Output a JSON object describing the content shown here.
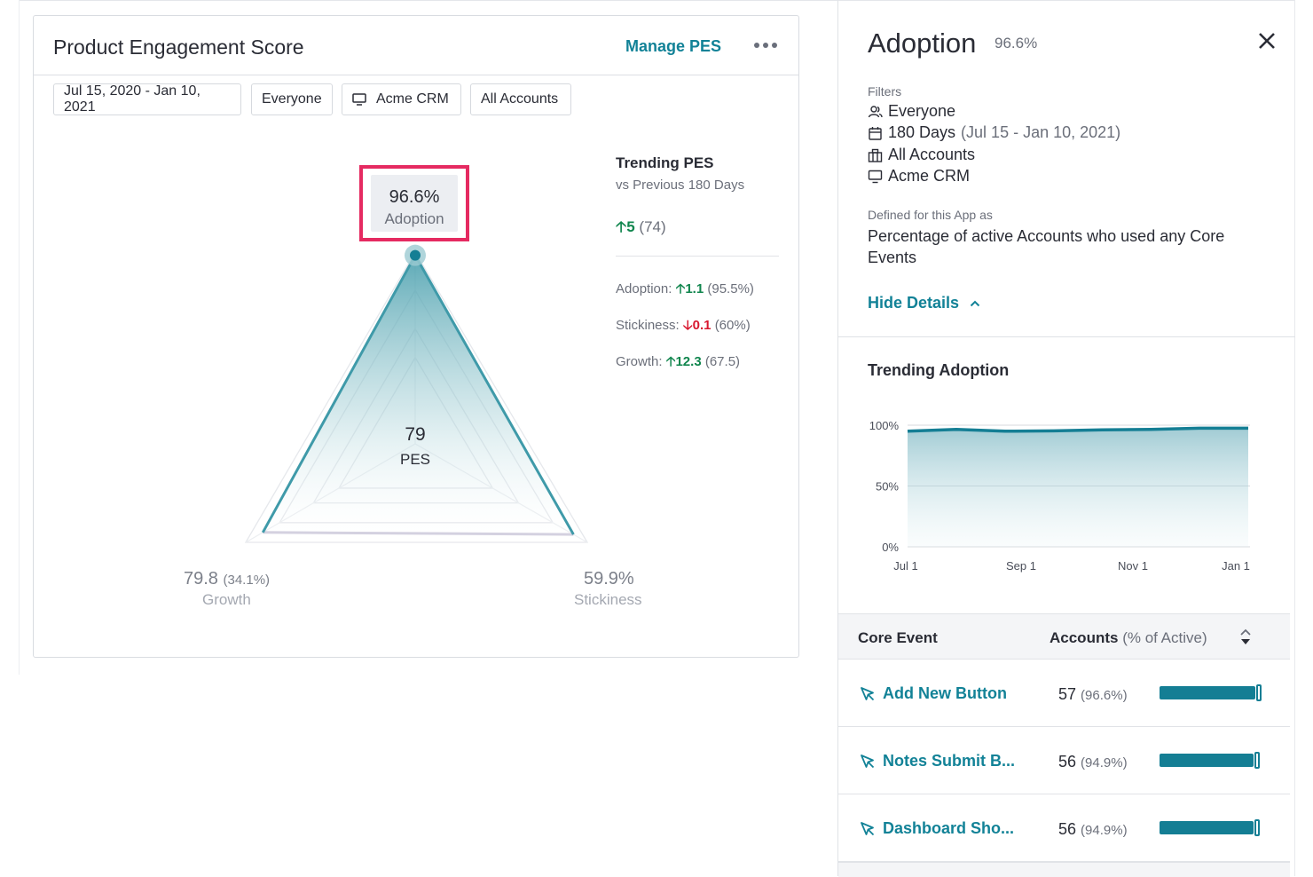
{
  "card": {
    "title": "Product Engagement Score",
    "manage_label": "Manage PES",
    "filters": {
      "date_range": "Jul 15, 2020 - Jan 10, 2021",
      "segment": "Everyone",
      "app": "Acme CRM",
      "accounts": "All Accounts"
    },
    "adoption_callout": {
      "value": "96.6%",
      "label": "Adoption"
    },
    "pes": {
      "value": "79",
      "label": "PES"
    },
    "growth": {
      "value": "79.8",
      "pct": "(34.1%)",
      "label": "Growth"
    },
    "stickiness": {
      "value": "59.9%",
      "label": "Stickiness"
    },
    "radar": {
      "adoption": 96.6,
      "growth": 79.8,
      "stickiness": 59.9
    },
    "trending": {
      "title": "Trending PES",
      "subtitle": "vs Previous 180 Days",
      "change": "5",
      "previous": "(74)",
      "rows": [
        {
          "label": "Adoption:",
          "direction": "up",
          "change": "1.1",
          "value": "(95.5%)"
        },
        {
          "label": "Stickiness:",
          "direction": "down",
          "change": "0.1",
          "value": "(60%)"
        },
        {
          "label": "Growth:",
          "direction": "up",
          "change": "12.3",
          "value": "(67.5)"
        }
      ]
    }
  },
  "panel": {
    "title": "Adoption",
    "title_value": "96.6%",
    "filters_label": "Filters",
    "filters": {
      "segment": "Everyone",
      "days": "180 Days",
      "days_range": "(Jul 15 - Jan 10, 2021)",
      "accounts": "All Accounts",
      "app": "Acme CRM"
    },
    "defined_label": "Defined for this App as",
    "definition": "Percentage of active Accounts who used any Core Events",
    "hide_details": "Hide Details",
    "trend_title": "Trending Adoption",
    "table": {
      "col_event": "Core Event",
      "col_accounts": "Accounts",
      "col_accounts_sub": "(% of Active)",
      "rows": [
        {
          "event": "Add New Button",
          "count": "57",
          "pct": "(96.6%)",
          "share": 0.966
        },
        {
          "event": "Notes Submit B...",
          "count": "56",
          "pct": "(94.9%)",
          "share": 0.949
        },
        {
          "event": "Dashboard Sho...",
          "count": "56",
          "pct": "(94.9%)",
          "share": 0.949
        }
      ]
    }
  },
  "chart_data": {
    "type": "area",
    "title": "Trending Adoption",
    "xlabel": "",
    "ylabel": "",
    "x_ticks": [
      "Jul 1",
      "Sep 1",
      "Nov 1",
      "Jan 1"
    ],
    "y_ticks": [
      "0%",
      "50%",
      "100%"
    ],
    "ylim": [
      0,
      100
    ],
    "grid": true,
    "x": [
      "Jul 1",
      "Aug 1",
      "Sep 1",
      "Oct 1",
      "Nov 1",
      "Dec 1",
      "Jan 1",
      "Jan 10"
    ],
    "series": [
      {
        "values": [
          95.0,
          96.5,
          95.0,
          95.3,
          96.2,
          96.5,
          97.5,
          97.5
        ]
      }
    ]
  },
  "colors": {
    "accent": "#128297",
    "highlight": "#e52a61",
    "positive": "#11864e",
    "negative": "#d8182f",
    "bar": "#147e94"
  }
}
